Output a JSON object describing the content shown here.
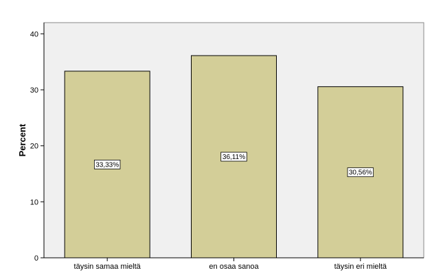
{
  "chart_data": {
    "type": "bar",
    "categories": [
      "täysin samaa mieltä",
      "en osaa sanoa",
      "täysin eri mieltä"
    ],
    "values": [
      33.33,
      36.11,
      30.56
    ],
    "data_labels": [
      "33,33%",
      "36,11%",
      "30,56%"
    ],
    "ylabel": "Percent",
    "xlabel": "",
    "ylim": [
      0,
      42
    ],
    "yticks": [
      0,
      10,
      20,
      30,
      40
    ],
    "grid": false,
    "legend": "none",
    "colors": {
      "bar_fill": "#d3ce98",
      "bar_stroke": "#000000",
      "plot_background": "#f0f0f0",
      "axis": "#000000"
    }
  }
}
